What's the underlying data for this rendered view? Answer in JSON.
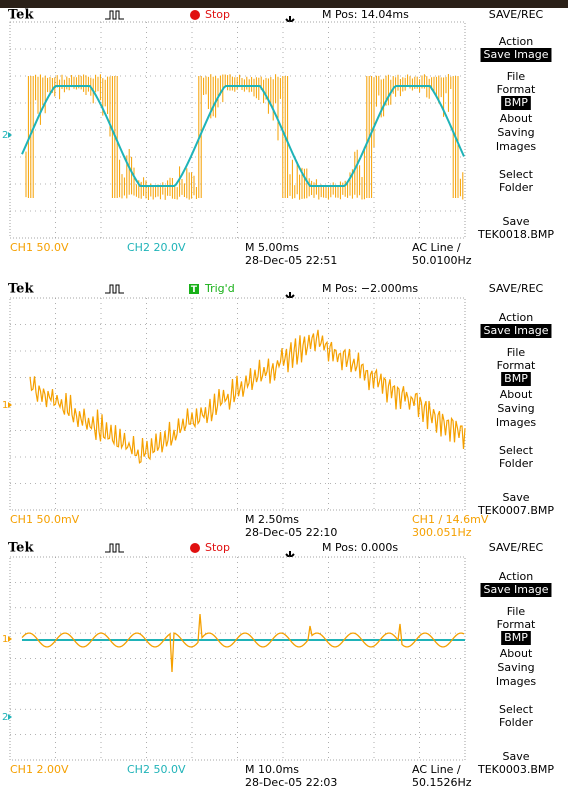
{
  "panels": [
    {
      "header": {
        "brand": "Tek",
        "status": "Stop",
        "status_color": "#e01010",
        "position": "M Pos: 14.04ms",
        "menu_title": "SAVE/REC"
      },
      "menu": [
        {
          "lines": [
            "Action"
          ],
          "value": "Save Image"
        },
        {
          "lines": [
            "File",
            "Format"
          ],
          "value": "BMP"
        },
        {
          "lines": [
            "About",
            "Saving",
            "Images"
          ]
        },
        {
          "lines": [
            "Select",
            "Folder"
          ]
        },
        {
          "lines": [
            "Save",
            "TEK0018.BMP"
          ]
        }
      ],
      "markers": [
        {
          "label": "2",
          "color": "#1fb3b8"
        }
      ],
      "footer": {
        "ch1": "CH1  50.0V",
        "ch2": "CH2  20.0V",
        "timebase": "M 5.00ms",
        "datetime": "28-Dec-05 22:51",
        "trigger": "AC Line ∕",
        "frequency": "50.0100Hz",
        "trigger_color": "#000000"
      }
    },
    {
      "header": {
        "brand": "Tek",
        "status": "Trig'd",
        "status_color": "#18b018",
        "position": "M Pos: −2.000ms",
        "menu_title": "SAVE/REC"
      },
      "menu": [
        {
          "lines": [
            "Action"
          ],
          "value": "Save Image"
        },
        {
          "lines": [
            "File",
            "Format"
          ],
          "value": "BMP"
        },
        {
          "lines": [
            "About",
            "Saving",
            "Images"
          ]
        },
        {
          "lines": [
            "Select",
            "Folder"
          ]
        },
        {
          "lines": [
            "Save",
            "TEK0007.BMP"
          ]
        }
      ],
      "markers": [
        {
          "label": "1",
          "color": "#f5a000"
        }
      ],
      "footer": {
        "ch1": "CH1  50.0mV",
        "timebase": "M 2.50ms",
        "datetime": "28-Dec-05 22:10",
        "trigger": "CH1 ∕ 14.6mV",
        "frequency": "300.051Hz",
        "trigger_color": "#f5a000"
      }
    },
    {
      "header": {
        "brand": "Tek",
        "status": "Stop",
        "status_color": "#e01010",
        "position": "M Pos: 0.000s",
        "menu_title": "SAVE/REC"
      },
      "menu": [
        {
          "lines": [
            "Action"
          ],
          "value": "Save Image"
        },
        {
          "lines": [
            "File",
            "Format"
          ],
          "value": "BMP"
        },
        {
          "lines": [
            "About",
            "Saving",
            "Images"
          ]
        },
        {
          "lines": [
            "Select",
            "Folder"
          ]
        },
        {
          "lines": [
            "Save",
            "TEK0003.BMP"
          ]
        }
      ],
      "markers": [
        {
          "label": "1",
          "color": "#f5a000"
        },
        {
          "label": "2",
          "color": "#1fb3b8"
        }
      ],
      "footer": {
        "ch1": "CH1  2.00V",
        "ch2": "CH2  50.0V",
        "timebase": "M 10.0ms",
        "datetime": "28-Dec-05 22:03",
        "trigger": "AC Line ∕",
        "frequency": "50.1526Hz",
        "trigger_color": "#000000"
      }
    }
  ]
}
